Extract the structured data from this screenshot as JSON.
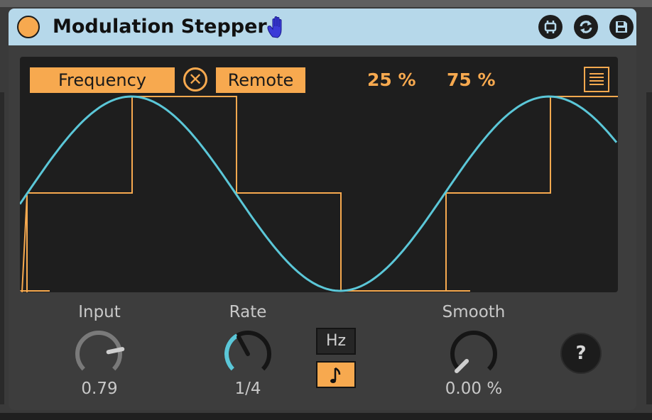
{
  "device": {
    "title": "Modulation Stepper",
    "accent_color": "#f7a94f",
    "titlebar_color": "#b6d8ea",
    "wave_color": "#5bc7d8",
    "icons": {
      "power": "power-toggle-icon",
      "hand": "hand-icon",
      "map": "map-icon",
      "refresh": "refresh-icon",
      "save": "save-icon"
    }
  },
  "display": {
    "parameter_label": "Frequency",
    "remote_label": "Remote",
    "clear_symbol": "✕",
    "left_percent": "25 %",
    "right_percent": "75 %",
    "menu_icon": "menu-lines-icon"
  },
  "controls": {
    "input": {
      "label": "Input",
      "value": "0.79",
      "level": 0.79
    },
    "rate": {
      "label": "Rate",
      "value": "1/4"
    },
    "smooth": {
      "label": "Smooth",
      "value": "0.00 %",
      "level": 0.0
    },
    "mode": {
      "hz_label": "Hz",
      "note_icon": "note-icon"
    },
    "help_label": "?"
  }
}
